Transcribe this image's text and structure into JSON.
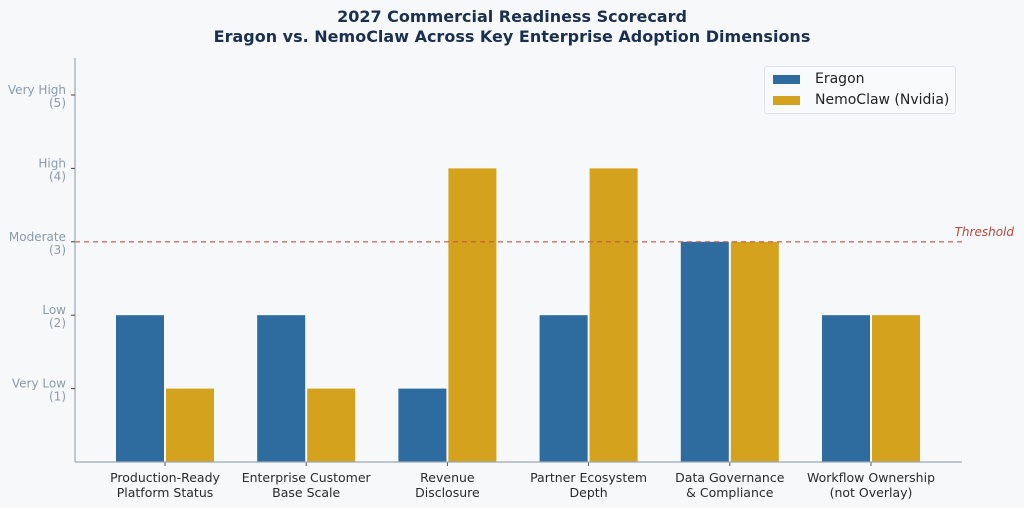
{
  "chart_data": {
    "type": "bar",
    "title": "2027 Commercial Readiness Scorecard",
    "subtitle": "Eragon vs. NemoClaw Across Key Enterprise Adoption Dimensions",
    "xlabel": "",
    "ylabel": "",
    "ylim": [
      0,
      5.5
    ],
    "categories": [
      [
        "Production-Ready",
        "Platform Status"
      ],
      [
        "Enterprise Customer",
        "Base Scale"
      ],
      [
        "Revenue",
        "Disclosure"
      ],
      [
        "Partner Ecosystem",
        "Depth"
      ],
      [
        "Data Governance",
        "& Compliance"
      ],
      [
        "Workflow Ownership",
        "(not Overlay)"
      ]
    ],
    "series": [
      {
        "name": "Eragon",
        "color": "#2e6b9e",
        "values": [
          2,
          2,
          1,
          2,
          3,
          2
        ]
      },
      {
        "name": "NemoClaw (Nvidia)",
        "color": "#d4a21c",
        "values": [
          1,
          1,
          4,
          4,
          3,
          2
        ]
      }
    ],
    "yticks": [
      {
        "value": 1,
        "label": [
          "Very Low",
          "(1)"
        ]
      },
      {
        "value": 2,
        "label": [
          "Low",
          "(2)"
        ]
      },
      {
        "value": 3,
        "label": [
          "Moderate",
          "(3)"
        ]
      },
      {
        "value": 4,
        "label": [
          "High",
          "(4)"
        ]
      },
      {
        "value": 5,
        "label": [
          "Very High",
          "(5)"
        ]
      }
    ],
    "threshold": {
      "value": 3,
      "label": "Threshold",
      "color": "#c9574a"
    },
    "grid": false,
    "legend": "top-right"
  }
}
